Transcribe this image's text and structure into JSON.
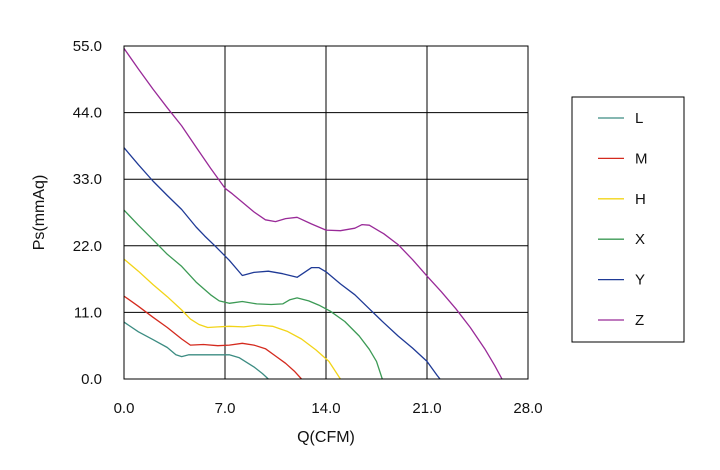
{
  "chart_data": {
    "type": "line",
    "title": "",
    "xlabel": "Q(CFM)",
    "ylabel": "Ps(mmAq)",
    "xlim": [
      0,
      28
    ],
    "ylim": [
      0,
      55
    ],
    "x_ticks": [
      "0.0",
      "7.0",
      "14.0",
      "21.0",
      "28.0"
    ],
    "y_ticks": [
      "0.0",
      "11.0",
      "22.0",
      "33.0",
      "44.0",
      "55.0"
    ],
    "grid": true,
    "legend_position": "right",
    "series": [
      {
        "name": "L",
        "color": "#3c8c82",
        "points": [
          [
            0,
            9.4
          ],
          [
            1,
            7.8
          ],
          [
            2,
            6.5
          ],
          [
            3,
            5.2
          ],
          [
            3.6,
            4.0
          ],
          [
            4,
            3.7
          ],
          [
            4.5,
            4.0
          ],
          [
            5.5,
            4.0
          ],
          [
            6.5,
            4.0
          ],
          [
            7.3,
            4.0
          ],
          [
            8,
            3.5
          ],
          [
            9,
            2.0
          ],
          [
            9.6,
            0.9
          ],
          [
            10,
            0
          ]
        ]
      },
      {
        "name": "M",
        "color": "#d42a1e",
        "points": [
          [
            0,
            13.7
          ],
          [
            1,
            12.0
          ],
          [
            2,
            10.2
          ],
          [
            3,
            8.5
          ],
          [
            4,
            6.6
          ],
          [
            4.6,
            5.6
          ],
          [
            5.5,
            5.7
          ],
          [
            6.5,
            5.5
          ],
          [
            7.3,
            5.6
          ],
          [
            8.2,
            5.9
          ],
          [
            9,
            5.6
          ],
          [
            9.8,
            5.0
          ],
          [
            10.5,
            3.8
          ],
          [
            11.2,
            2.6
          ],
          [
            11.8,
            1.3
          ],
          [
            12.3,
            0
          ]
        ]
      },
      {
        "name": "H",
        "color": "#f2d418",
        "points": [
          [
            0,
            19.8
          ],
          [
            1,
            17.8
          ],
          [
            2,
            15.6
          ],
          [
            3,
            13.6
          ],
          [
            4,
            11.4
          ],
          [
            4.6,
            9.9
          ],
          [
            5.2,
            9.0
          ],
          [
            5.8,
            8.5
          ],
          [
            6.5,
            8.6
          ],
          [
            7.3,
            8.7
          ],
          [
            8.3,
            8.6
          ],
          [
            9.3,
            8.9
          ],
          [
            10.3,
            8.7
          ],
          [
            11.3,
            7.9
          ],
          [
            12.3,
            6.6
          ],
          [
            13.3,
            4.8
          ],
          [
            14.2,
            2.9
          ],
          [
            15,
            0
          ]
        ]
      },
      {
        "name": "X",
        "color": "#3c9a55",
        "points": [
          [
            0,
            27.9
          ],
          [
            1,
            25.4
          ],
          [
            2,
            23.0
          ],
          [
            3,
            20.6
          ],
          [
            4,
            18.6
          ],
          [
            5,
            16.0
          ],
          [
            6,
            13.9
          ],
          [
            6.6,
            12.9
          ],
          [
            7.3,
            12.5
          ],
          [
            8.2,
            12.8
          ],
          [
            9.2,
            12.4
          ],
          [
            10.2,
            12.3
          ],
          [
            11,
            12.4
          ],
          [
            11.5,
            13.1
          ],
          [
            12,
            13.4
          ],
          [
            12.8,
            12.9
          ],
          [
            13.5,
            12.2
          ],
          [
            14.3,
            11.2
          ],
          [
            15.3,
            9.5
          ],
          [
            16.3,
            7.1
          ],
          [
            17,
            4.9
          ],
          [
            17.5,
            2.9
          ],
          [
            17.9,
            0
          ]
        ]
      },
      {
        "name": "Y",
        "color": "#1f3a96",
        "points": [
          [
            0,
            38.2
          ],
          [
            1,
            35.4
          ],
          [
            2,
            32.7
          ],
          [
            3,
            30.3
          ],
          [
            4,
            28.0
          ],
          [
            5,
            25.1
          ],
          [
            5.6,
            23.6
          ],
          [
            6.3,
            22.0
          ],
          [
            7.3,
            19.6
          ],
          [
            8.2,
            17.1
          ],
          [
            9,
            17.6
          ],
          [
            10,
            17.8
          ],
          [
            11,
            17.4
          ],
          [
            12,
            16.8
          ],
          [
            12.5,
            17.6
          ],
          [
            13,
            18.4
          ],
          [
            13.5,
            18.4
          ],
          [
            14,
            17.7
          ],
          [
            15,
            15.7
          ],
          [
            16,
            13.9
          ],
          [
            17,
            11.6
          ],
          [
            18,
            9.3
          ],
          [
            19,
            7.1
          ],
          [
            20,
            5.1
          ],
          [
            21,
            2.9
          ],
          [
            21.7,
            0.6
          ],
          [
            21.9,
            0
          ]
        ]
      },
      {
        "name": "Z",
        "color": "#992a98",
        "points": [
          [
            0,
            54.6
          ],
          [
            1,
            51.2
          ],
          [
            2,
            47.9
          ],
          [
            3,
            44.8
          ],
          [
            4,
            41.8
          ],
          [
            5,
            38.3
          ],
          [
            6,
            34.8
          ],
          [
            7,
            31.5
          ],
          [
            7.5,
            30.6
          ],
          [
            8,
            29.6
          ],
          [
            9,
            27.6
          ],
          [
            9.8,
            26.3
          ],
          [
            10.5,
            26.0
          ],
          [
            11.2,
            26.5
          ],
          [
            12,
            26.7
          ],
          [
            13,
            25.6
          ],
          [
            14,
            24.6
          ],
          [
            15,
            24.5
          ],
          [
            16,
            24.9
          ],
          [
            16.5,
            25.5
          ],
          [
            17,
            25.4
          ],
          [
            18,
            24.0
          ],
          [
            19,
            22.2
          ],
          [
            20,
            19.7
          ],
          [
            21,
            17.0
          ],
          [
            22,
            14.4
          ],
          [
            23,
            11.6
          ],
          [
            24,
            8.5
          ],
          [
            25,
            5.0
          ],
          [
            25.7,
            2.2
          ],
          [
            26.2,
            0
          ]
        ]
      }
    ]
  }
}
